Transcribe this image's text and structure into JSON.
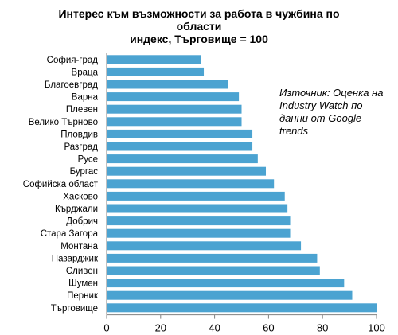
{
  "chart_data": {
    "type": "bar",
    "orientation": "horizontal",
    "title": "Интерес към възможности за работа в чужбина по области",
    "title_line1": "Интерес към възможности за работа в чужбина по",
    "title_line2": "области",
    "subtitle": "индекс, Търговище = 100",
    "annotation": "Източник: Оценка на Industry Watch по данни от Google trends",
    "categories": [
      "София-град",
      "Враца",
      "Благоевград",
      "Варна",
      "Плевен",
      "Велико Търново",
      "Пловдив",
      "Разград",
      "Русе",
      "Бургас",
      "Софийска област",
      "Хасково",
      "Кърджали",
      "Добрич",
      "Стара Загора",
      "Монтана",
      "Пазарджик",
      "Сливен",
      "Шумен",
      "Перник",
      "Търговище"
    ],
    "values": [
      35,
      36,
      45,
      49,
      50,
      50,
      54,
      54,
      56,
      59,
      62,
      66,
      67,
      68,
      68,
      72,
      78,
      79,
      88,
      91,
      100
    ],
    "xlim": [
      0,
      100
    ],
    "xticks": [
      0,
      20,
      40,
      60,
      80,
      100
    ],
    "xtick_labels": [
      "0",
      "20",
      "40",
      "60",
      "80",
      "100"
    ],
    "grid": false,
    "bar_color": "#4BA3D1"
  }
}
